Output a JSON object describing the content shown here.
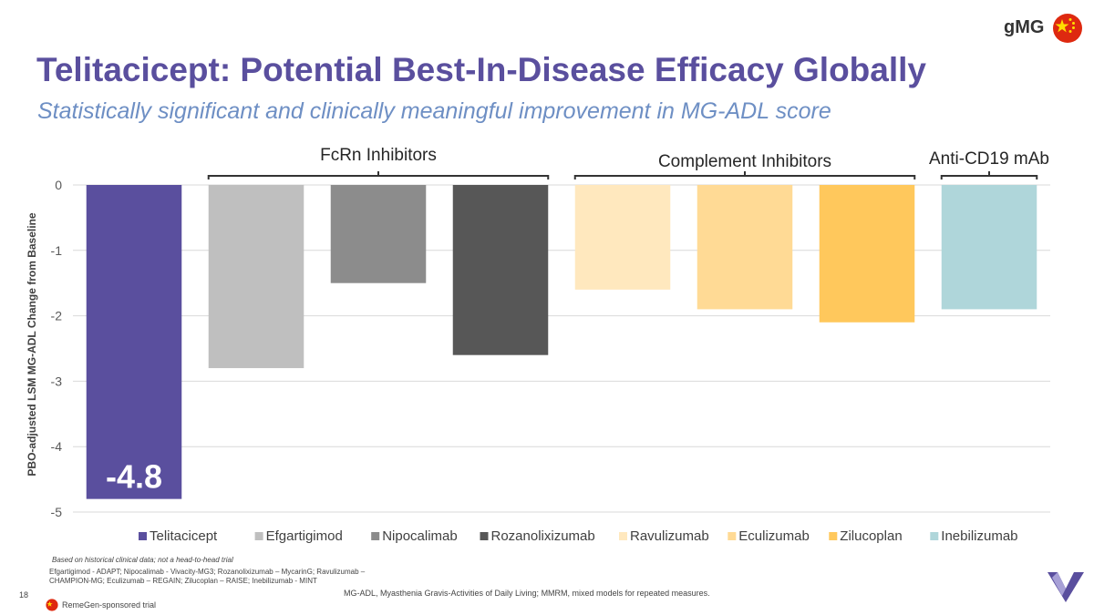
{
  "header": {
    "title": "Telitacicept: Potential Best-In-Disease Efficacy Globally",
    "subtitle": "Statistically significant and clinically meaningful improvement in MG-ADL score",
    "indication": "gMG"
  },
  "colors": {
    "title": "#5A4F9E",
    "subtitle": "#6E8FC4",
    "flag_red": "#DE2910",
    "flag_yellow": "#FFDE00",
    "logo_purple": "#5A4F9E",
    "logo_light": "#A7A0D6"
  },
  "chart_data": {
    "type": "bar",
    "title": "",
    "xlabel": "",
    "ylabel": "PBO-adjusted LSM MG-ADL Change from Baseline",
    "ylim": [
      -5,
      0
    ],
    "yticks": [
      "0",
      "-1",
      "-2",
      "-3",
      "-4",
      "-5"
    ],
    "grid": true,
    "categories": [
      "Telitacicept",
      "Efgartigimod",
      "Nipocalimab",
      "Rozanolixizumab",
      "Ravulizumab",
      "Eculizumab",
      "Zilucoplan",
      "Inebilizumab"
    ],
    "values": [
      -4.8,
      -2.8,
      -1.5,
      -2.6,
      -1.6,
      -1.9,
      -2.1,
      -1.9
    ],
    "colors": [
      "#5A4F9E",
      "#BFBFBF",
      "#8C8C8C",
      "#575757",
      "#FFE8BE",
      "#FFDA95",
      "#FFC85C",
      "#AFD6DA"
    ],
    "data_labels": [
      {
        "category": "Telitacicept",
        "text": "-4.8"
      }
    ],
    "legend": "bottom",
    "groups": [
      {
        "label": "FcRn Inhibitors",
        "from": 1,
        "to": 3
      },
      {
        "label": "Complement Inhibitors",
        "from": 4,
        "to": 6
      },
      {
        "label": "Anti-CD19 mAb",
        "from": 7,
        "to": 7
      }
    ]
  },
  "footnotes": {
    "disclaimer": "Based on historical clinical data; not a head-to-head trial",
    "trials": "Efgartigimod - ADAPT; Nipocalimab - Vivacity-MG3; Rozanolixizumab – MycarinG; Ravulizumab – CHAMPION-MG; Eculizumab – REGAIN; Zilucoplan – RAISE; Inebilizumab - MINT",
    "abbreviations": "MG-ADL, Myasthenia Gravis-Activities of Daily Living; MMRM, mixed models for repeated measures.",
    "page_number": "18",
    "sponsor_note": "RemeGen-sponsored trial"
  },
  "icons": {
    "flag": "china-flag-icon",
    "logo": "company-logo-icon"
  }
}
